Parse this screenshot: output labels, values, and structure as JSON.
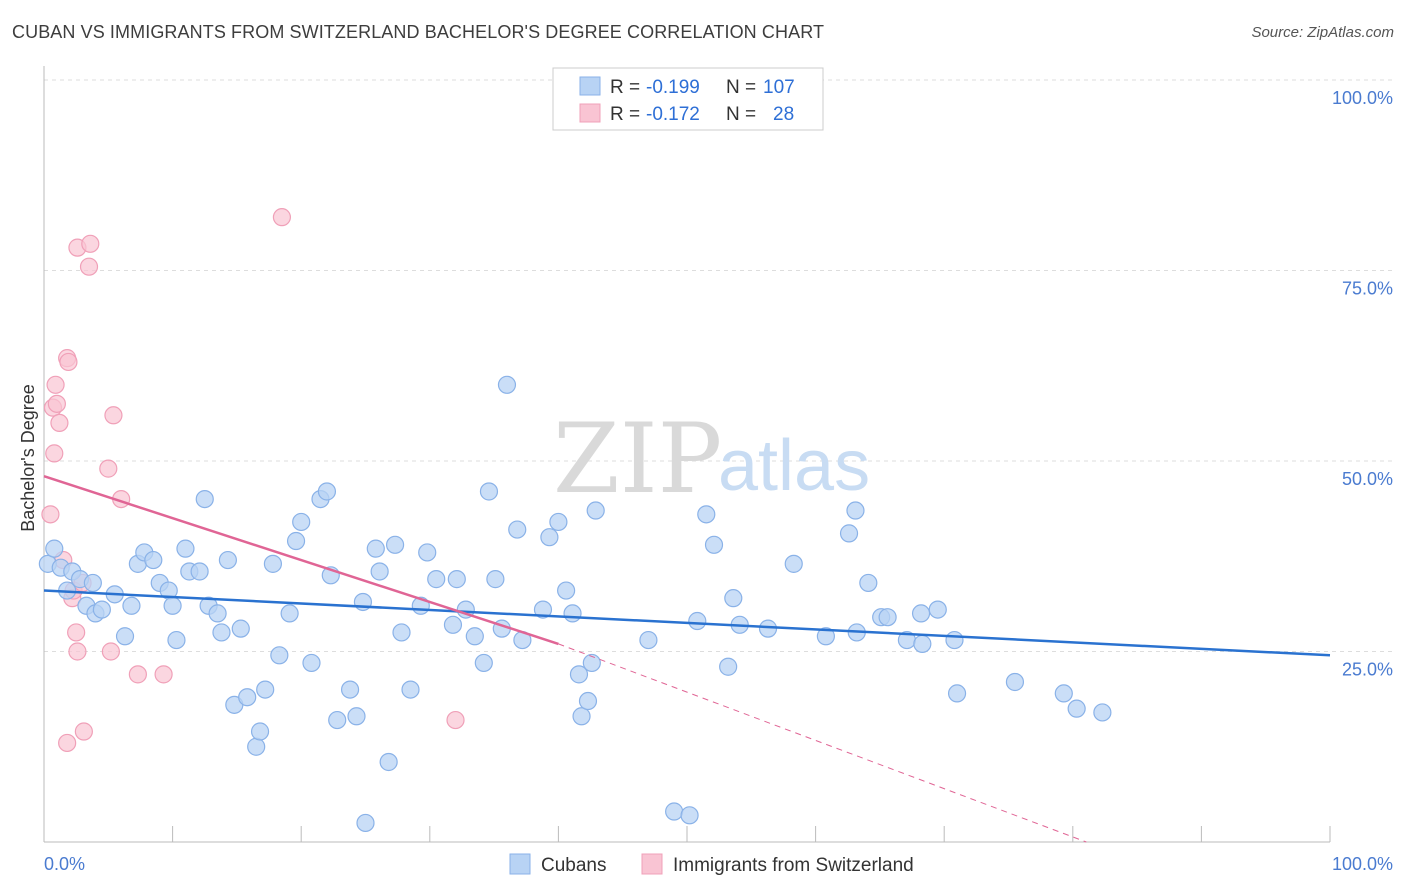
{
  "title": "CUBAN VS IMMIGRANTS FROM SWITZERLAND BACHELOR'S DEGREE CORRELATION CHART",
  "source": "Source: ZipAtlas.com",
  "watermark": {
    "zip": "ZIP",
    "atlas": "atlas"
  },
  "colors": {
    "blue_fill": "#b8d3f4",
    "blue_stroke": "#8ab2e8",
    "blue_line": "#2a72d0",
    "pink_fill": "#f9c4d3",
    "pink_stroke": "#f0a0b8",
    "pink_line": "#e06595",
    "tick_text": "#4a7bd0",
    "grid": "#dddddd"
  },
  "legend_top": {
    "rows": [
      {
        "r_label": "R = ",
        "r_value": "-0.199",
        "n_label": "N = ",
        "n_value": "107",
        "color": "blue"
      },
      {
        "r_label": "R = ",
        "r_value": "-0.172",
        "n_label": "N = ",
        "n_value": "28",
        "color": "pink"
      }
    ]
  },
  "legend_bottom": [
    "Cubans",
    "Immigrants from Switzerland"
  ],
  "chart_data": {
    "type": "scatter",
    "xlabel": "",
    "ylabel": "Bachelor's Degree",
    "xlim": [
      0,
      100
    ],
    "ylim": [
      0,
      100
    ],
    "x_tick_labels": {
      "left": "0.0%",
      "right": "100.0%"
    },
    "y_ticks": [
      {
        "value": 25,
        "label": "25.0%"
      },
      {
        "value": 50,
        "label": "50.0%"
      },
      {
        "value": 75,
        "label": "75.0%"
      },
      {
        "value": 100,
        "label": "100.0%"
      }
    ],
    "grid": true,
    "legend_position": "top-center",
    "series": [
      {
        "name": "Cubans",
        "color": "blue",
        "trend": {
          "x0": 0,
          "y0": 33,
          "x1": 100,
          "y1": 24.5
        },
        "points": [
          [
            0.3,
            36.5
          ],
          [
            0.8,
            38.5
          ],
          [
            1.3,
            36
          ],
          [
            2.2,
            35.5
          ],
          [
            1.8,
            33
          ],
          [
            2.8,
            34.5
          ],
          [
            3.3,
            31
          ],
          [
            4.0,
            30
          ],
          [
            3.8,
            34
          ],
          [
            5.5,
            32.5
          ],
          [
            4.5,
            30.5
          ],
          [
            6.3,
            27
          ],
          [
            6.8,
            31
          ],
          [
            7.3,
            36.5
          ],
          [
            7.8,
            38
          ],
          [
            8.5,
            37
          ],
          [
            9.0,
            34
          ],
          [
            9.7,
            33
          ],
          [
            10.0,
            31
          ],
          [
            10.3,
            26.5
          ],
          [
            11.0,
            38.5
          ],
          [
            11.3,
            35.5
          ],
          [
            12.1,
            35.5
          ],
          [
            12.5,
            45
          ],
          [
            12.8,
            31
          ],
          [
            13.5,
            30
          ],
          [
            13.8,
            27.5
          ],
          [
            14.3,
            37
          ],
          [
            15.3,
            28
          ],
          [
            14.8,
            18
          ],
          [
            15.8,
            19
          ],
          [
            16.5,
            12.5
          ],
          [
            16.8,
            14.5
          ],
          [
            17.2,
            20
          ],
          [
            17.8,
            36.5
          ],
          [
            18.3,
            24.5
          ],
          [
            19.1,
            30
          ],
          [
            19.6,
            39.5
          ],
          [
            20.0,
            42
          ],
          [
            20.8,
            23.5
          ],
          [
            21.5,
            45
          ],
          [
            22.0,
            46
          ],
          [
            22.3,
            35
          ],
          [
            22.8,
            16
          ],
          [
            23.8,
            20
          ],
          [
            24.3,
            16.5
          ],
          [
            24.8,
            31.5
          ],
          [
            25.0,
            2.5
          ],
          [
            25.8,
            38.5
          ],
          [
            26.1,
            35.5
          ],
          [
            26.8,
            10.5
          ],
          [
            27.3,
            39
          ],
          [
            27.8,
            27.5
          ],
          [
            28.5,
            20
          ],
          [
            29.3,
            31
          ],
          [
            29.8,
            38
          ],
          [
            30.5,
            34.5
          ],
          [
            31.8,
            28.5
          ],
          [
            32.1,
            34.5
          ],
          [
            32.8,
            30.5
          ],
          [
            33.5,
            27
          ],
          [
            34.2,
            23.5
          ],
          [
            34.6,
            46
          ],
          [
            35.1,
            34.5
          ],
          [
            35.6,
            28
          ],
          [
            36.0,
            60
          ],
          [
            36.8,
            41
          ],
          [
            37.2,
            26.5
          ],
          [
            38.8,
            30.5
          ],
          [
            39.3,
            40
          ],
          [
            40.0,
            42
          ],
          [
            40.6,
            33
          ],
          [
            41.1,
            30
          ],
          [
            41.6,
            22
          ],
          [
            41.8,
            16.5
          ],
          [
            42.3,
            18.5
          ],
          [
            42.6,
            23.5
          ],
          [
            42.9,
            43.5
          ],
          [
            47.0,
            26.5
          ],
          [
            49.0,
            4
          ],
          [
            50.2,
            3.5
          ],
          [
            50.8,
            29
          ],
          [
            51.5,
            43
          ],
          [
            52.1,
            39
          ],
          [
            53.2,
            23
          ],
          [
            53.6,
            32
          ],
          [
            54.1,
            28.5
          ],
          [
            56.3,
            28
          ],
          [
            58.3,
            36.5
          ],
          [
            60.8,
            27
          ],
          [
            62.6,
            40.5
          ],
          [
            63.1,
            43.5
          ],
          [
            63.2,
            27.5
          ],
          [
            64.1,
            34
          ],
          [
            65.1,
            29.5
          ],
          [
            65.6,
            29.5
          ],
          [
            67.1,
            26.5
          ],
          [
            68.2,
            30
          ],
          [
            68.3,
            26
          ],
          [
            69.5,
            30.5
          ],
          [
            70.8,
            26.5
          ],
          [
            71.0,
            19.5
          ],
          [
            75.5,
            21
          ],
          [
            79.3,
            19.5
          ],
          [
            80.3,
            17.5
          ],
          [
            82.3,
            17
          ]
        ]
      },
      {
        "name": "Immigrants from Switzerland",
        "color": "pink",
        "trend": {
          "x0": 0,
          "y0": 48,
          "x1": 40,
          "y1": 26,
          "dash_x1": 100,
          "dash_y1": -12
        },
        "points": [
          [
            0.5,
            43
          ],
          [
            0.7,
            57
          ],
          [
            0.8,
            51
          ],
          [
            0.9,
            60
          ],
          [
            1.0,
            57.5
          ],
          [
            1.2,
            55
          ],
          [
            1.5,
            37
          ],
          [
            1.8,
            63.5
          ],
          [
            1.9,
            63
          ],
          [
            1.8,
            13
          ],
          [
            2.2,
            32
          ],
          [
            2.3,
            33
          ],
          [
            2.5,
            27.5
          ],
          [
            2.6,
            25
          ],
          [
            2.6,
            78
          ],
          [
            3.0,
            34
          ],
          [
            3.1,
            14.5
          ],
          [
            3.5,
            75.5
          ],
          [
            3.6,
            78.5
          ],
          [
            5.0,
            49
          ],
          [
            5.2,
            25
          ],
          [
            5.4,
            56
          ],
          [
            6.0,
            45
          ],
          [
            7.3,
            22
          ],
          [
            9.3,
            22
          ],
          [
            18.5,
            82
          ],
          [
            32.0,
            16
          ]
        ]
      }
    ]
  }
}
